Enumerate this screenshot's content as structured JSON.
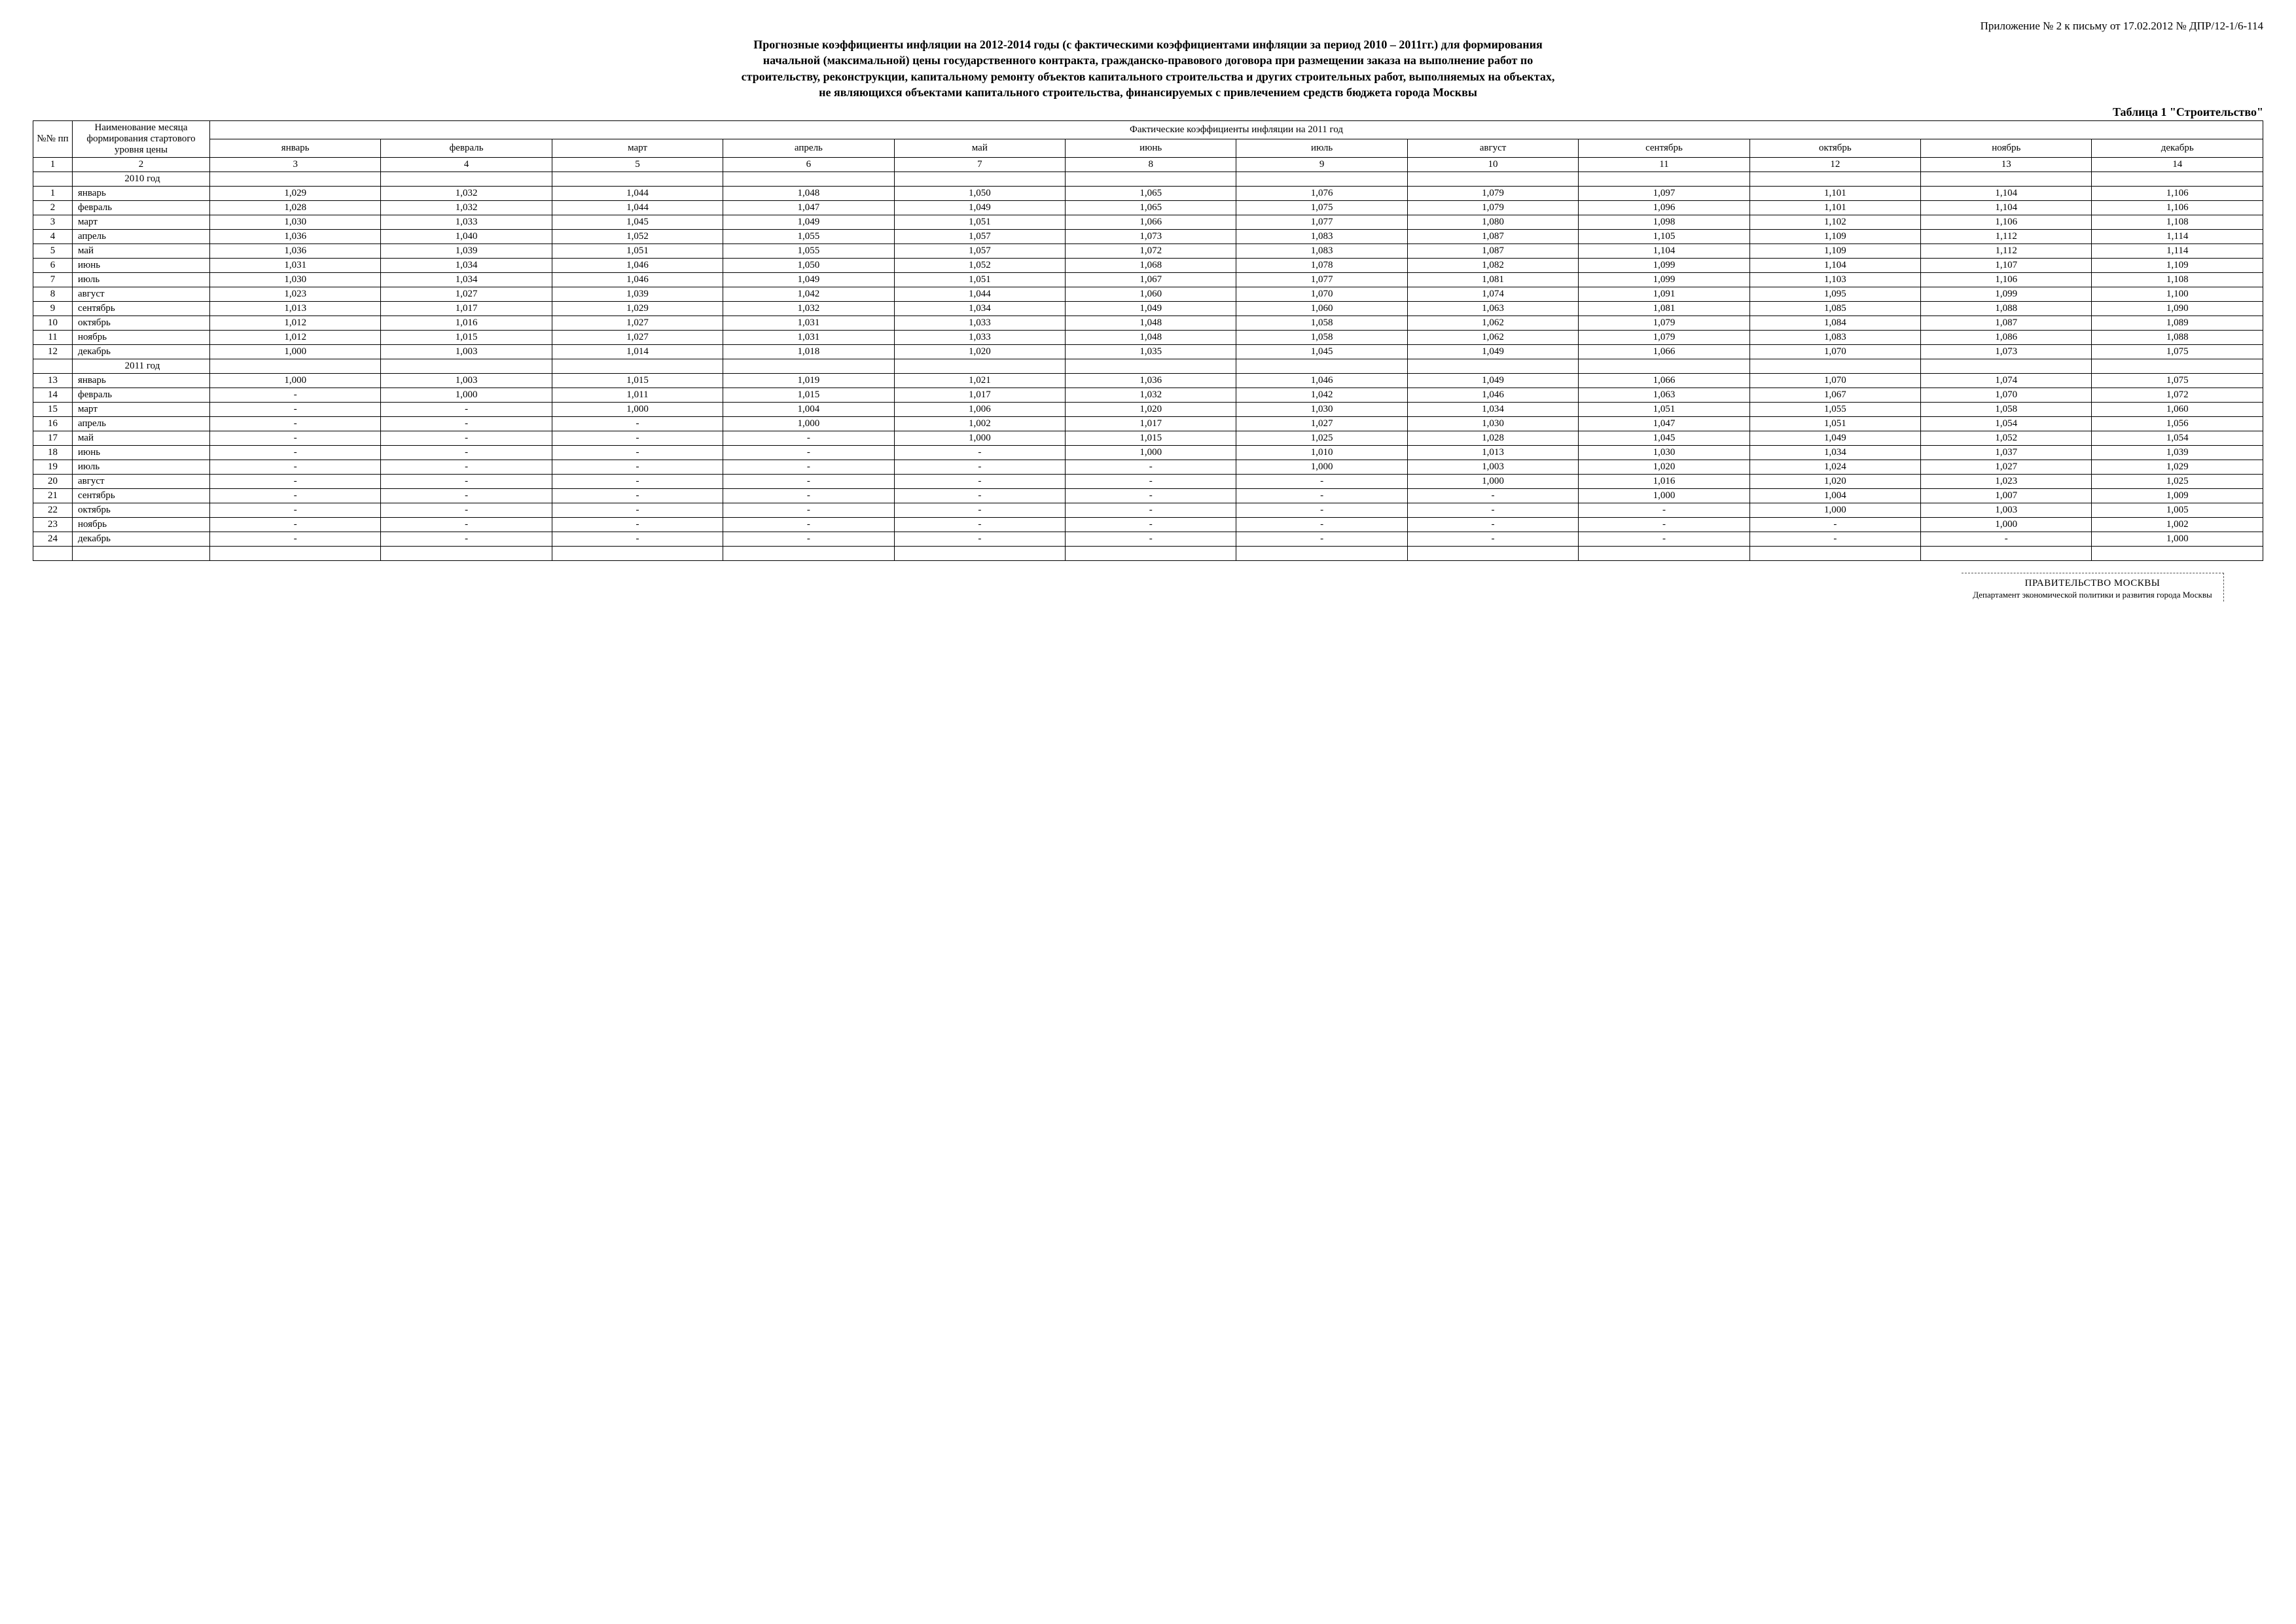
{
  "appendix_line": "Приложение № 2 к письму от 17.02.2012  № ДПР/12-1/6-114",
  "title": "Прогнозные коэффициенты инфляции на 2012-2014 годы (с фактическими коэффициентами инфляции за период 2010 – 2011гг.) для формирования начальной (максимальной) цены государственного контракта, гражданско-правового договора при размещении заказа на выполнение работ по строительству,  реконструкции, капитальному ремонту объектов капитального строительства и других строительных работ,  выполняемых на объектах, не являющихся объектами капитального строительства, финансируемых с привлечением средств бюджета города Москвы",
  "table_label": "Таблица 1 \"Строительство\"",
  "header": {
    "col_num": "№№ пп",
    "col_name": "Наименование месяца формирования стартового уровня цены",
    "span_title": "Фактические коэффициенты инфляции на 2011 год",
    "months": [
      "январь",
      "февраль",
      "март",
      "апрель",
      "май",
      "июнь",
      "июль",
      "август",
      "сентябрь",
      "октябрь",
      "ноябрь",
      "декабрь"
    ]
  },
  "colnums": [
    "1",
    "2",
    "3",
    "4",
    "5",
    "6",
    "7",
    "8",
    "9",
    "10",
    "11",
    "12",
    "13",
    "14"
  ],
  "sections": [
    {
      "year_label": "2010 год",
      "rows": [
        {
          "n": "1",
          "m": "январь",
          "v": [
            "1,029",
            "1,032",
            "1,044",
            "1,048",
            "1,050",
            "1,065",
            "1,076",
            "1,079",
            "1,097",
            "1,101",
            "1,104",
            "1,106"
          ]
        },
        {
          "n": "2",
          "m": "февраль",
          "v": [
            "1,028",
            "1,032",
            "1,044",
            "1,047",
            "1,049",
            "1,065",
            "1,075",
            "1,079",
            "1,096",
            "1,101",
            "1,104",
            "1,106"
          ]
        },
        {
          "n": "3",
          "m": "март",
          "v": [
            "1,030",
            "1,033",
            "1,045",
            "1,049",
            "1,051",
            "1,066",
            "1,077",
            "1,080",
            "1,098",
            "1,102",
            "1,106",
            "1,108"
          ]
        },
        {
          "n": "4",
          "m": "апрель",
          "v": [
            "1,036",
            "1,040",
            "1,052",
            "1,055",
            "1,057",
            "1,073",
            "1,083",
            "1,087",
            "1,105",
            "1,109",
            "1,112",
            "1,114"
          ]
        },
        {
          "n": "5",
          "m": "май",
          "v": [
            "1,036",
            "1,039",
            "1,051",
            "1,055",
            "1,057",
            "1,072",
            "1,083",
            "1,087",
            "1,104",
            "1,109",
            "1,112",
            "1,114"
          ]
        },
        {
          "n": "6",
          "m": "июнь",
          "v": [
            "1,031",
            "1,034",
            "1,046",
            "1,050",
            "1,052",
            "1,068",
            "1,078",
            "1,082",
            "1,099",
            "1,104",
            "1,107",
            "1,109"
          ]
        },
        {
          "n": "7",
          "m": "июль",
          "v": [
            "1,030",
            "1,034",
            "1,046",
            "1,049",
            "1,051",
            "1,067",
            "1,077",
            "1,081",
            "1,099",
            "1,103",
            "1,106",
            "1,108"
          ]
        },
        {
          "n": "8",
          "m": "август",
          "v": [
            "1,023",
            "1,027",
            "1,039",
            "1,042",
            "1,044",
            "1,060",
            "1,070",
            "1,074",
            "1,091",
            "1,095",
            "1,099",
            "1,100"
          ]
        },
        {
          "n": "9",
          "m": "сентябрь",
          "v": [
            "1,013",
            "1,017",
            "1,029",
            "1,032",
            "1,034",
            "1,049",
            "1,060",
            "1,063",
            "1,081",
            "1,085",
            "1,088",
            "1,090"
          ]
        },
        {
          "n": "10",
          "m": "октябрь",
          "v": [
            "1,012",
            "1,016",
            "1,027",
            "1,031",
            "1,033",
            "1,048",
            "1,058",
            "1,062",
            "1,079",
            "1,084",
            "1,087",
            "1,089"
          ]
        },
        {
          "n": "11",
          "m": "ноябрь",
          "v": [
            "1,012",
            "1,015",
            "1,027",
            "1,031",
            "1,033",
            "1,048",
            "1,058",
            "1,062",
            "1,079",
            "1,083",
            "1,086",
            "1,088"
          ]
        },
        {
          "n": "12",
          "m": "декабрь",
          "v": [
            "1,000",
            "1,003",
            "1,014",
            "1,018",
            "1,020",
            "1,035",
            "1,045",
            "1,049",
            "1,066",
            "1,070",
            "1,073",
            "1,075"
          ]
        }
      ]
    },
    {
      "year_label": "2011 год",
      "rows": [
        {
          "n": "13",
          "m": "январь",
          "v": [
            "1,000",
            "1,003",
            "1,015",
            "1,019",
            "1,021",
            "1,036",
            "1,046",
            "1,049",
            "1,066",
            "1,070",
            "1,074",
            "1,075"
          ]
        },
        {
          "n": "14",
          "m": "февраль",
          "v": [
            "-",
            "1,000",
            "1,011",
            "1,015",
            "1,017",
            "1,032",
            "1,042",
            "1,046",
            "1,063",
            "1,067",
            "1,070",
            "1,072"
          ]
        },
        {
          "n": "15",
          "m": "март",
          "v": [
            "-",
            "-",
            "1,000",
            "1,004",
            "1,006",
            "1,020",
            "1,030",
            "1,034",
            "1,051",
            "1,055",
            "1,058",
            "1,060"
          ]
        },
        {
          "n": "16",
          "m": "апрель",
          "v": [
            "-",
            "-",
            "-",
            "1,000",
            "1,002",
            "1,017",
            "1,027",
            "1,030",
            "1,047",
            "1,051",
            "1,054",
            "1,056"
          ]
        },
        {
          "n": "17",
          "m": "май",
          "v": [
            "-",
            "-",
            "-",
            "-",
            "1,000",
            "1,015",
            "1,025",
            "1,028",
            "1,045",
            "1,049",
            "1,052",
            "1,054"
          ]
        },
        {
          "n": "18",
          "m": "июнь",
          "v": [
            "-",
            "-",
            "-",
            "-",
            "-",
            "1,000",
            "1,010",
            "1,013",
            "1,030",
            "1,034",
            "1,037",
            "1,039"
          ]
        },
        {
          "n": "19",
          "m": "июль",
          "v": [
            "-",
            "-",
            "-",
            "-",
            "-",
            "-",
            "1,000",
            "1,003",
            "1,020",
            "1,024",
            "1,027",
            "1,029"
          ]
        },
        {
          "n": "20",
          "m": "август",
          "v": [
            "-",
            "-",
            "-",
            "-",
            "-",
            "-",
            "-",
            "1,000",
            "1,016",
            "1,020",
            "1,023",
            "1,025"
          ]
        },
        {
          "n": "21",
          "m": "сентябрь",
          "v": [
            "-",
            "-",
            "-",
            "-",
            "-",
            "-",
            "-",
            "-",
            "1,000",
            "1,004",
            "1,007",
            "1,009"
          ]
        },
        {
          "n": "22",
          "m": "октябрь",
          "v": [
            "-",
            "-",
            "-",
            "-",
            "-",
            "-",
            "-",
            "-",
            "-",
            "1,000",
            "1,003",
            "1,005"
          ]
        },
        {
          "n": "23",
          "m": "ноябрь",
          "v": [
            "-",
            "-",
            "-",
            "-",
            "-",
            "-",
            "-",
            "-",
            "-",
            "-",
            "1,000",
            "1,002"
          ]
        },
        {
          "n": "24",
          "m": "декабрь",
          "v": [
            "-",
            "-",
            "-",
            "-",
            "-",
            "-",
            "-",
            "-",
            "-",
            "-",
            "-",
            "1,000"
          ]
        }
      ]
    }
  ],
  "stamp": {
    "line1": "ПРАВИТЕЛЬСТВО МОСКВЫ",
    "line2": "Департамент экономической политики и развития города Москвы"
  },
  "style": {
    "background": "#ffffff",
    "text_color": "#000000",
    "border_color": "#000000",
    "font_family": "Times New Roman",
    "title_fontsize_pt": 13,
    "body_fontsize_pt": 11
  }
}
